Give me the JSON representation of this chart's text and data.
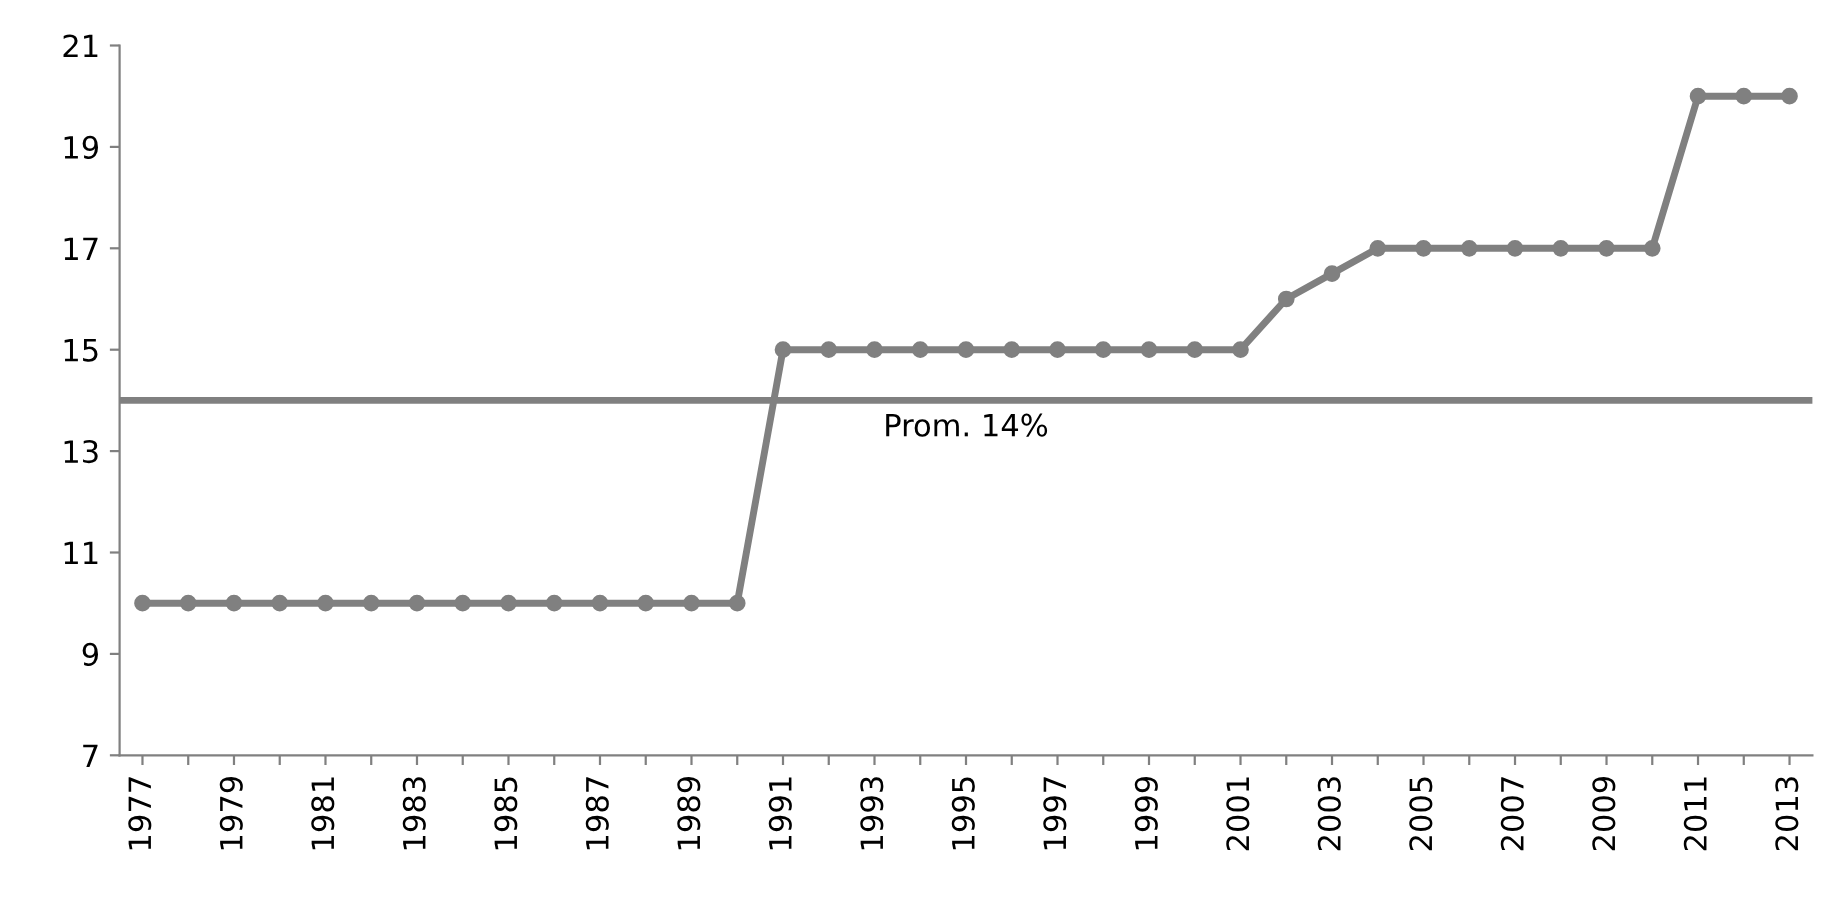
{
  "chart_data": {
    "type": "line",
    "categories": [
      "1977",
      null,
      "1979",
      null,
      "1981",
      null,
      "1983",
      null,
      "1985",
      null,
      "1987",
      null,
      "1989",
      null,
      "1991",
      null,
      "1993",
      null,
      "1995",
      null,
      "1997",
      null,
      "1999",
      null,
      "2001",
      null,
      "2003",
      null,
      "2005",
      null,
      "2007",
      null,
      "2009",
      null,
      "2011",
      null,
      "2013"
    ],
    "series": [
      {
        "color": "#808080",
        "values": [
          10,
          10,
          10,
          10,
          10,
          10,
          10,
          10,
          10,
          10,
          10,
          10,
          10,
          10,
          15,
          15,
          15,
          15,
          15,
          15,
          15,
          15,
          15,
          15,
          15,
          16,
          16.5,
          17,
          17,
          17,
          17,
          17,
          17,
          17,
          20,
          20,
          20
        ]
      }
    ],
    "ylim": [
      7,
      21
    ],
    "yticks": [
      7,
      9,
      11,
      13,
      15,
      17,
      19,
      21
    ],
    "ref_lines": [
      {
        "axis": "y",
        "value": 14,
        "label": "Prom. 14%",
        "color": "#808080"
      }
    ],
    "marker": "circle",
    "grid": false,
    "legend": false
  }
}
